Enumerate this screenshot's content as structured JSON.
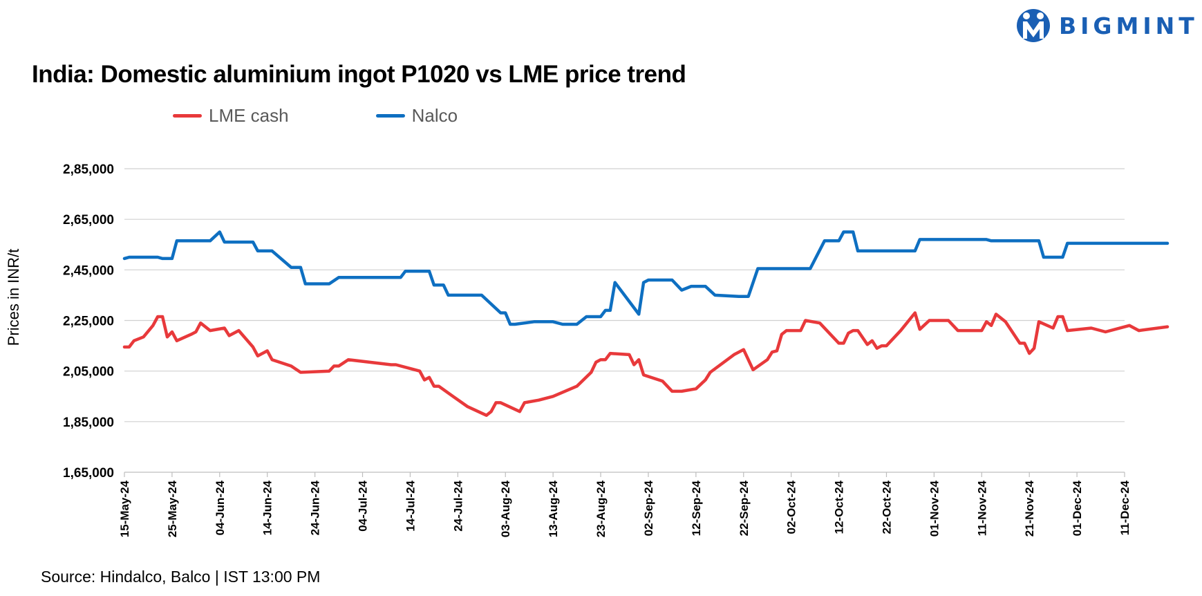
{
  "title": "India: Domestic aluminium ingot P1020 vs LME price trend",
  "brand": "BIGMINT",
  "source": "Source: Hindalco, Balco | IST 13:00 PM",
  "colors": {
    "lme": "#e8393b",
    "nalco": "#0e6fc1",
    "brand": "#1a5fb4",
    "grid": "#d0d0d0"
  },
  "chart_data": {
    "type": "line",
    "title": "India: Domestic aluminium ingot P1020 vs LME price trend",
    "xlabel": "",
    "ylabel": "Prices in INR/t",
    "ylim": [
      165000,
      285000
    ],
    "yticks": [
      165000,
      185000,
      205000,
      225000,
      245000,
      265000,
      285000
    ],
    "ytick_labels": [
      "1,65,000",
      "1,85,000",
      "2,05,000",
      "2,25,000",
      "2,45,000",
      "2,65,000",
      "2,85,000"
    ],
    "x_range": [
      "15-May-24",
      "11-Dec-24"
    ],
    "xtick_labels": [
      "15-May-24",
      "25-May-24",
      "04-Jun-24",
      "14-Jun-24",
      "24-Jun-24",
      "04-Jul-24",
      "14-Jul-24",
      "24-Jul-24",
      "03-Aug-24",
      "13-Aug-24",
      "23-Aug-24",
      "02-Sep-24",
      "12-Sep-24",
      "22-Sep-24",
      "02-Oct-24",
      "12-Oct-24",
      "22-Oct-24",
      "01-Nov-24",
      "11-Nov-24",
      "21-Nov-24",
      "01-Dec-24",
      "11-Dec-24"
    ],
    "grid": true,
    "legend_position": "top-left",
    "series": [
      {
        "name": "LME cash",
        "color": "#e8393b",
        "points": [
          [
            "2024-05-15",
            214500
          ],
          [
            "2024-05-16",
            214500
          ],
          [
            "2024-05-17",
            217000
          ],
          [
            "2024-05-19",
            218500
          ],
          [
            "2024-05-21",
            223000
          ],
          [
            "2024-05-22",
            226500
          ],
          [
            "2024-05-23",
            226500
          ],
          [
            "2024-05-24",
            218500
          ],
          [
            "2024-05-25",
            220500
          ],
          [
            "2024-05-26",
            217000
          ],
          [
            "2024-05-29",
            219500
          ],
          [
            "2024-05-30",
            220500
          ],
          [
            "2024-05-31",
            224000
          ],
          [
            "2024-06-02",
            221000
          ],
          [
            "2024-06-05",
            222000
          ],
          [
            "2024-06-06",
            219000
          ],
          [
            "2024-06-08",
            221000
          ],
          [
            "2024-06-11",
            214500
          ],
          [
            "2024-06-12",
            211000
          ],
          [
            "2024-06-14",
            213000
          ],
          [
            "2024-06-15",
            209500
          ],
          [
            "2024-06-19",
            207000
          ],
          [
            "2024-06-21",
            204500
          ],
          [
            "2024-06-27",
            205000
          ],
          [
            "2024-06-28",
            207000
          ],
          [
            "2024-06-29",
            207000
          ],
          [
            "2024-07-01",
            209500
          ],
          [
            "2024-07-10",
            207500
          ],
          [
            "2024-07-11",
            207500
          ],
          [
            "2024-07-15",
            205500
          ],
          [
            "2024-07-16",
            205000
          ],
          [
            "2024-07-17",
            201500
          ],
          [
            "2024-07-18",
            202500
          ],
          [
            "2024-07-19",
            199000
          ],
          [
            "2024-07-20",
            199000
          ],
          [
            "2024-07-23",
            195000
          ],
          [
            "2024-07-26",
            191000
          ],
          [
            "2024-07-30",
            187500
          ],
          [
            "2024-07-31",
            189000
          ],
          [
            "2024-08-01",
            192500
          ],
          [
            "2024-08-02",
            192500
          ],
          [
            "2024-08-06",
            189000
          ],
          [
            "2024-08-07",
            192500
          ],
          [
            "2024-08-10",
            193500
          ],
          [
            "2024-08-13",
            195000
          ],
          [
            "2024-08-18",
            199000
          ],
          [
            "2024-08-21",
            204500
          ],
          [
            "2024-08-22",
            208500
          ],
          [
            "2024-08-23",
            209500
          ],
          [
            "2024-08-24",
            209500
          ],
          [
            "2024-08-25",
            212000
          ],
          [
            "2024-08-29",
            211500
          ],
          [
            "2024-08-30",
            207500
          ],
          [
            "2024-08-31",
            209500
          ],
          [
            "2024-09-01",
            203500
          ],
          [
            "2024-09-05",
            201000
          ],
          [
            "2024-09-07",
            197000
          ],
          [
            "2024-09-09",
            197000
          ],
          [
            "2024-09-12",
            198000
          ],
          [
            "2024-09-14",
            201500
          ],
          [
            "2024-09-15",
            204500
          ],
          [
            "2024-09-20",
            211500
          ],
          [
            "2024-09-22",
            213500
          ],
          [
            "2024-09-24",
            205500
          ],
          [
            "2024-09-27",
            209500
          ],
          [
            "2024-09-28",
            212500
          ],
          [
            "2024-09-29",
            213000
          ],
          [
            "2024-09-30",
            219500
          ],
          [
            "2024-10-01",
            221000
          ],
          [
            "2024-10-04",
            221000
          ],
          [
            "2024-10-05",
            225000
          ],
          [
            "2024-10-08",
            224000
          ],
          [
            "2024-10-12",
            216000
          ],
          [
            "2024-10-13",
            216000
          ],
          [
            "2024-10-14",
            220000
          ],
          [
            "2024-10-15",
            221000
          ],
          [
            "2024-10-16",
            221000
          ],
          [
            "2024-10-18",
            215500
          ],
          [
            "2024-10-19",
            217000
          ],
          [
            "2024-10-20",
            214000
          ],
          [
            "2024-10-21",
            215000
          ],
          [
            "2024-10-22",
            215000
          ],
          [
            "2024-10-25",
            221000
          ],
          [
            "2024-10-28",
            228000
          ],
          [
            "2024-10-29",
            221500
          ],
          [
            "2024-10-31",
            225000
          ],
          [
            "2024-11-04",
            225000
          ],
          [
            "2024-11-06",
            221000
          ],
          [
            "2024-11-11",
            221000
          ],
          [
            "2024-11-12",
            224500
          ],
          [
            "2024-11-13",
            223000
          ],
          [
            "2024-11-14",
            227500
          ],
          [
            "2024-11-16",
            224500
          ],
          [
            "2024-11-19",
            216000
          ],
          [
            "2024-11-20",
            216000
          ],
          [
            "2024-11-21",
            212000
          ],
          [
            "2024-11-22",
            214000
          ],
          [
            "2024-11-23",
            224500
          ],
          [
            "2024-11-26",
            222000
          ],
          [
            "2024-11-27",
            226500
          ],
          [
            "2024-11-28",
            226500
          ],
          [
            "2024-11-29",
            221000
          ],
          [
            "2024-12-04",
            222000
          ],
          [
            "2024-12-07",
            220500
          ],
          [
            "2024-12-12",
            223000
          ],
          [
            "2024-12-14",
            221000
          ],
          [
            "2024-12-20",
            222500
          ]
        ]
      },
      {
        "name": "Nalco",
        "color": "#0e6fc1",
        "points": [
          [
            "2024-05-15",
            249500
          ],
          [
            "2024-05-16",
            250000
          ],
          [
            "2024-05-22",
            250000
          ],
          [
            "2024-05-23",
            249500
          ],
          [
            "2024-05-25",
            249500
          ],
          [
            "2024-05-26",
            256500
          ],
          [
            "2024-06-02",
            256500
          ],
          [
            "2024-06-04",
            260000
          ],
          [
            "2024-06-05",
            256000
          ],
          [
            "2024-06-11",
            256000
          ],
          [
            "2024-06-12",
            252500
          ],
          [
            "2024-06-15",
            252500
          ],
          [
            "2024-06-19",
            246000
          ],
          [
            "2024-06-21",
            246000
          ],
          [
            "2024-06-22",
            239500
          ],
          [
            "2024-06-27",
            239500
          ],
          [
            "2024-06-29",
            242000
          ],
          [
            "2024-07-12",
            242000
          ],
          [
            "2024-07-13",
            244500
          ],
          [
            "2024-07-18",
            244500
          ],
          [
            "2024-07-19",
            239000
          ],
          [
            "2024-07-21",
            239000
          ],
          [
            "2024-07-22",
            235000
          ],
          [
            "2024-07-29",
            235000
          ],
          [
            "2024-08-02",
            228000
          ],
          [
            "2024-08-03",
            228000
          ],
          [
            "2024-08-04",
            223500
          ],
          [
            "2024-08-05",
            223500
          ],
          [
            "2024-08-09",
            224500
          ],
          [
            "2024-08-13",
            224500
          ],
          [
            "2024-08-15",
            223500
          ],
          [
            "2024-08-18",
            223500
          ],
          [
            "2024-08-20",
            226500
          ],
          [
            "2024-08-23",
            226500
          ],
          [
            "2024-08-24",
            229000
          ],
          [
            "2024-08-25",
            229000
          ],
          [
            "2024-08-26",
            240000
          ],
          [
            "2024-08-31",
            227500
          ],
          [
            "2024-09-01",
            240000
          ],
          [
            "2024-09-02",
            241000
          ],
          [
            "2024-09-07",
            241000
          ],
          [
            "2024-09-09",
            237000
          ],
          [
            "2024-09-11",
            238500
          ],
          [
            "2024-09-14",
            238500
          ],
          [
            "2024-09-16",
            235000
          ],
          [
            "2024-09-21",
            234500
          ],
          [
            "2024-09-23",
            234500
          ],
          [
            "2024-09-25",
            245500
          ],
          [
            "2024-10-06",
            245500
          ],
          [
            "2024-10-09",
            256500
          ],
          [
            "2024-10-12",
            256500
          ],
          [
            "2024-10-13",
            260000
          ],
          [
            "2024-10-15",
            260000
          ],
          [
            "2024-10-16",
            252500
          ],
          [
            "2024-10-28",
            252500
          ],
          [
            "2024-10-29",
            257000
          ],
          [
            "2024-11-03",
            257000
          ],
          [
            "2024-11-12",
            257000
          ],
          [
            "2024-11-13",
            256500
          ],
          [
            "2024-11-23",
            256500
          ],
          [
            "2024-11-24",
            250000
          ],
          [
            "2024-11-28",
            250000
          ],
          [
            "2024-11-29",
            255500
          ],
          [
            "2024-12-20",
            255500
          ]
        ]
      }
    ]
  }
}
